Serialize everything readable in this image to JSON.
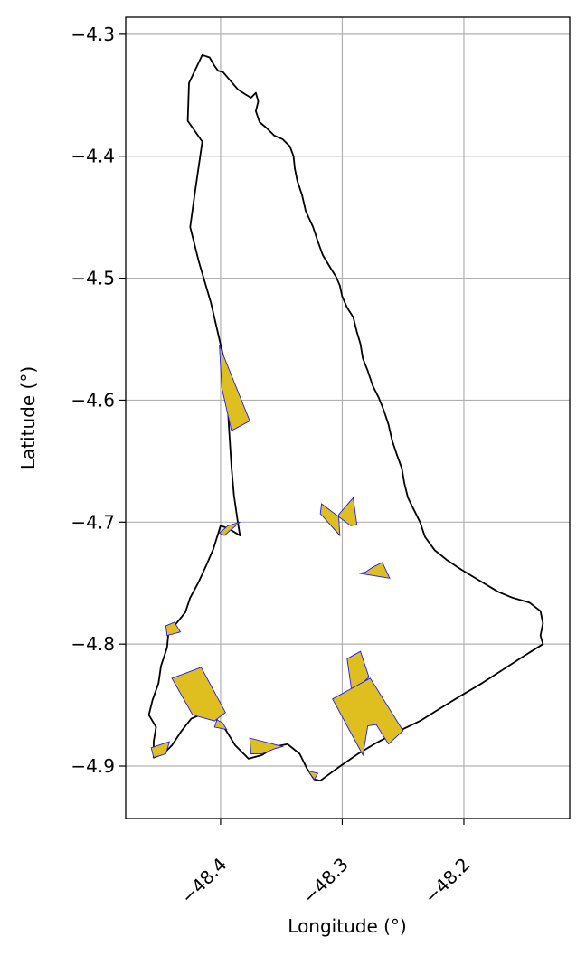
{
  "chart_data": {
    "type": "map",
    "xlabel": "Longitude (°)",
    "ylabel": "Latitude (°)",
    "xlim": [
      -48.478,
      -48.113
    ],
    "ylim": [
      -4.943,
      -4.286
    ],
    "x_ticks": [
      {
        "value": -48.4,
        "label": "−48.4"
      },
      {
        "value": -48.3,
        "label": "−48.3"
      },
      {
        "value": -48.2,
        "label": "−48.2"
      }
    ],
    "y_ticks": [
      {
        "value": -4.3,
        "label": "−4.3"
      },
      {
        "value": -4.4,
        "label": "−4.4"
      },
      {
        "value": -4.5,
        "label": "−4.5"
      },
      {
        "value": -4.6,
        "label": "−4.6"
      },
      {
        "value": -4.7,
        "label": "−4.7"
      },
      {
        "value": -4.8,
        "label": "−4.8"
      },
      {
        "value": -4.9,
        "label": "−4.9"
      }
    ],
    "grid": true,
    "colors": {
      "boundary": "#000000",
      "polygon_fill": "#dfbe1f",
      "polygon_edge": "#1a1aff",
      "grid": "#b0b0b0"
    },
    "boundary": [
      [
        -48.415,
        -4.317
      ],
      [
        -48.409,
        -4.319
      ],
      [
        -48.405,
        -4.326
      ],
      [
        -48.402,
        -4.33
      ],
      [
        -48.398,
        -4.331
      ],
      [
        -48.392,
        -4.338
      ],
      [
        -48.386,
        -4.345
      ],
      [
        -48.38,
        -4.349
      ],
      [
        -48.375,
        -4.352
      ],
      [
        -48.371,
        -4.348
      ],
      [
        -48.369,
        -4.355
      ],
      [
        -48.371,
        -4.363
      ],
      [
        -48.368,
        -4.372
      ],
      [
        -48.362,
        -4.377
      ],
      [
        -48.356,
        -4.383
      ],
      [
        -48.349,
        -4.386
      ],
      [
        -48.343,
        -4.392
      ],
      [
        -48.34,
        -4.4
      ],
      [
        -48.339,
        -4.41
      ],
      [
        -48.337,
        -4.42
      ],
      [
        -48.333,
        -4.432
      ],
      [
        -48.33,
        -4.445
      ],
      [
        -48.324,
        -4.458
      ],
      [
        -48.32,
        -4.47
      ],
      [
        -48.316,
        -4.481
      ],
      [
        -48.31,
        -4.491
      ],
      [
        -48.305,
        -4.499
      ],
      [
        -48.302,
        -4.506
      ],
      [
        -48.3,
        -4.515
      ],
      [
        -48.296,
        -4.524
      ],
      [
        -48.291,
        -4.532
      ],
      [
        -48.288,
        -4.544
      ],
      [
        -48.285,
        -4.554
      ],
      [
        -48.283,
        -4.566
      ],
      [
        -48.279,
        -4.576
      ],
      [
        -48.275,
        -4.588
      ],
      [
        -48.27,
        -4.598
      ],
      [
        -48.266,
        -4.608
      ],
      [
        -48.262,
        -4.62
      ],
      [
        -48.259,
        -4.633
      ],
      [
        -48.255,
        -4.645
      ],
      [
        -48.251,
        -4.656
      ],
      [
        -48.249,
        -4.668
      ],
      [
        -48.246,
        -4.68
      ],
      [
        -48.241,
        -4.69
      ],
      [
        -48.236,
        -4.7
      ],
      [
        -48.232,
        -4.712
      ],
      [
        -48.224,
        -4.723
      ],
      [
        -48.214,
        -4.731
      ],
      [
        -48.202,
        -4.739
      ],
      [
        -48.192,
        -4.745
      ],
      [
        -48.182,
        -4.751
      ],
      [
        -48.172,
        -4.757
      ],
      [
        -48.16,
        -4.762
      ],
      [
        -48.146,
        -4.766
      ],
      [
        -48.137,
        -4.773
      ],
      [
        -48.135,
        -4.783
      ],
      [
        -48.137,
        -4.793
      ],
      [
        -48.135,
        -4.8
      ],
      [
        -48.151,
        -4.81
      ],
      [
        -48.168,
        -4.821
      ],
      [
        -48.185,
        -4.832
      ],
      [
        -48.202,
        -4.842
      ],
      [
        -48.22,
        -4.853
      ],
      [
        -48.236,
        -4.863
      ],
      [
        -48.255,
        -4.872
      ],
      [
        -48.272,
        -4.881
      ],
      [
        -48.287,
        -4.89
      ],
      [
        -48.303,
        -4.901
      ],
      [
        -48.318,
        -4.912
      ],
      [
        -48.323,
        -4.911
      ],
      [
        -48.329,
        -4.902
      ],
      [
        -48.335,
        -4.89
      ],
      [
        -48.345,
        -4.882
      ],
      [
        -48.355,
        -4.884
      ],
      [
        -48.366,
        -4.891
      ],
      [
        -48.377,
        -4.894
      ],
      [
        -48.388,
        -4.883
      ],
      [
        -48.396,
        -4.87
      ],
      [
        -48.404,
        -4.861
      ],
      [
        -48.414,
        -4.857
      ],
      [
        -48.424,
        -4.861
      ],
      [
        -48.432,
        -4.871
      ],
      [
        -48.44,
        -4.883
      ],
      [
        -48.447,
        -4.89
      ],
      [
        -48.455,
        -4.893
      ],
      [
        -48.455,
        -4.88
      ],
      [
        -48.453,
        -4.868
      ],
      [
        -48.459,
        -4.858
      ],
      [
        -48.456,
        -4.846
      ],
      [
        -48.451,
        -4.832
      ],
      [
        -48.449,
        -4.818
      ],
      [
        -48.444,
        -4.803
      ],
      [
        -48.443,
        -4.792
      ],
      [
        -48.438,
        -4.785
      ],
      [
        -48.429,
        -4.774
      ],
      [
        -48.425,
        -4.762
      ],
      [
        -48.418,
        -4.749
      ],
      [
        -48.412,
        -4.736
      ],
      [
        -48.406,
        -4.722
      ],
      [
        -48.4,
        -4.703
      ],
      [
        -48.394,
        -4.705
      ],
      [
        -48.384,
        -4.711
      ],
      [
        -48.386,
        -4.699
      ],
      [
        -48.389,
        -4.678
      ],
      [
        -48.391,
        -4.655
      ],
      [
        -48.393,
        -4.624
      ],
      [
        -48.395,
        -4.59
      ],
      [
        -48.398,
        -4.563
      ],
      [
        -48.408,
        -4.52
      ],
      [
        -48.418,
        -4.486
      ],
      [
        -48.425,
        -4.458
      ],
      [
        -48.421,
        -4.429
      ],
      [
        -48.415,
        -4.388
      ],
      [
        -48.427,
        -4.371
      ],
      [
        -48.426,
        -4.34
      ]
    ],
    "polygons": [
      [
        [
          -48.401,
          -4.555
        ],
        [
          -48.376,
          -4.617
        ],
        [
          -48.391,
          -4.625
        ],
        [
          -48.399,
          -4.59
        ]
      ],
      [
        [
          -48.401,
          -4.709
        ],
        [
          -48.394,
          -4.703
        ],
        [
          -48.384,
          -4.7
        ],
        [
          -48.397,
          -4.711
        ]
      ],
      [
        [
          -48.445,
          -4.785
        ],
        [
          -48.438,
          -4.782
        ],
        [
          -48.433,
          -4.79
        ],
        [
          -48.444,
          -4.793
        ]
      ],
      [
        [
          -48.44,
          -4.828
        ],
        [
          -48.416,
          -4.819
        ],
        [
          -48.396,
          -4.856
        ],
        [
          -48.405,
          -4.863
        ],
        [
          -48.423,
          -4.858
        ]
      ],
      [
        [
          -48.403,
          -4.862
        ],
        [
          -48.398,
          -4.865
        ],
        [
          -48.395,
          -4.87
        ],
        [
          -48.405,
          -4.868
        ]
      ],
      [
        [
          -48.457,
          -4.885
        ],
        [
          -48.442,
          -4.88
        ],
        [
          -48.445,
          -4.89
        ],
        [
          -48.455,
          -4.893
        ]
      ],
      [
        [
          -48.376,
          -4.877
        ],
        [
          -48.349,
          -4.884
        ],
        [
          -48.356,
          -4.886
        ],
        [
          -48.366,
          -4.89
        ],
        [
          -48.375,
          -4.89
        ]
      ],
      [
        [
          -48.303,
          -4.694
        ],
        [
          -48.291,
          -4.68
        ],
        [
          -48.288,
          -4.702
        ],
        [
          -48.293,
          -4.703
        ],
        [
          -48.317,
          -4.685
        ],
        [
          -48.318,
          -4.693
        ],
        [
          -48.302,
          -4.711
        ]
      ],
      [
        [
          -48.286,
          -4.742
        ],
        [
          -48.261,
          -4.746
        ],
        [
          -48.267,
          -4.733
        ],
        [
          -48.275,
          -4.737
        ],
        [
          -48.281,
          -4.741
        ]
      ],
      [
        [
          -48.296,
          -4.812
        ],
        [
          -48.285,
          -4.806
        ],
        [
          -48.278,
          -4.827
        ],
        [
          -48.292,
          -4.84
        ]
      ],
      [
        [
          -48.308,
          -4.845
        ],
        [
          -48.277,
          -4.828
        ],
        [
          -48.25,
          -4.871
        ],
        [
          -48.262,
          -4.882
        ],
        [
          -48.272,
          -4.866
        ],
        [
          -48.279,
          -4.867
        ],
        [
          -48.283,
          -4.891
        ]
      ],
      [
        [
          -48.328,
          -4.904
        ],
        [
          -48.32,
          -4.906
        ],
        [
          -48.323,
          -4.911
        ]
      ]
    ]
  }
}
